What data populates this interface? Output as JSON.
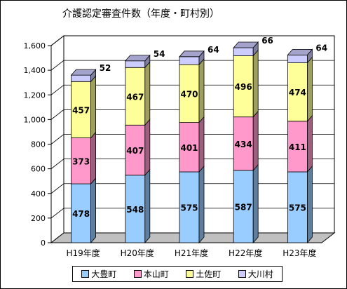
{
  "chart_data": {
    "type": "bar",
    "stacked": true,
    "three_d": true,
    "title": "介護認定審査件数（年度・町村別）",
    "categories": [
      "H19年度",
      "H20年度",
      "H21年度",
      "H22年度",
      "H23年度"
    ],
    "series": [
      {
        "name": "大豊町",
        "values": [
          478,
          548,
          575,
          587,
          575
        ],
        "color": "#99ccff"
      },
      {
        "name": "本山町",
        "values": [
          373,
          407,
          401,
          434,
          411
        ],
        "color": "#ff99cc"
      },
      {
        "name": "土佐町",
        "values": [
          457,
          467,
          470,
          496,
          474
        ],
        "color": "#ffff99"
      },
      {
        "name": "大川村",
        "values": [
          52,
          54,
          64,
          66,
          64
        ],
        "color": "#ccccff"
      }
    ],
    "yticks": [
      "0",
      "200",
      "400",
      "600",
      "800",
      "1,000",
      "1,200",
      "1,400",
      "1,600"
    ],
    "ylim": [
      0,
      1600
    ],
    "grid": true,
    "legend_position": "bottom"
  }
}
